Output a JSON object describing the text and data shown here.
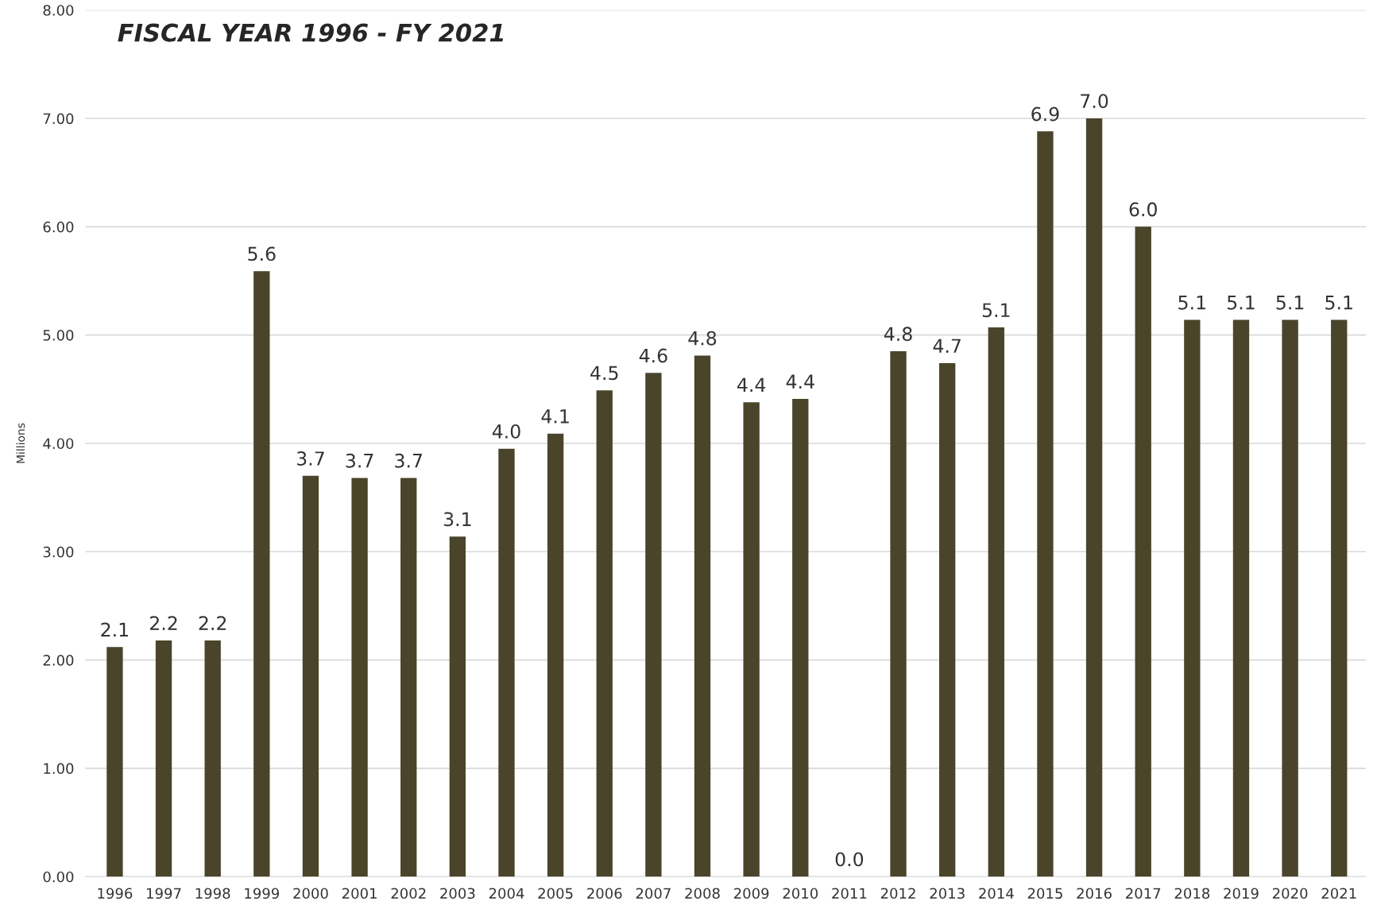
{
  "chart_data": {
    "type": "bar",
    "title": "FISCAL YEAR 1996 - FY 2021",
    "ylabel": "Millions",
    "categories": [
      "1996",
      "1997",
      "1998",
      "1999",
      "2000",
      "2001",
      "2002",
      "2003",
      "2004",
      "2005",
      "2006",
      "2007",
      "2008",
      "2009",
      "2010",
      "2011",
      "2012",
      "2013",
      "2014",
      "2015",
      "2016",
      "2017",
      "2018",
      "2019",
      "2020",
      "2021"
    ],
    "values": [
      2.12,
      2.18,
      2.18,
      5.59,
      3.7,
      3.68,
      3.68,
      3.14,
      3.95,
      4.09,
      4.49,
      4.65,
      4.81,
      4.38,
      4.41,
      0,
      4.85,
      4.74,
      5.07,
      6.88,
      7.0,
      6.0,
      5.14,
      5.14,
      5.14,
      5.14
    ],
    "value_labels": [
      "2.1",
      "2.2",
      "2.2",
      "5.6",
      "3.7",
      "3.7",
      "3.7",
      "3.1",
      "4.0",
      "4.1",
      "4.5",
      "4.6",
      "4.8",
      "4.4",
      "4.4",
      "0.0",
      "4.8",
      "4.7",
      "5.1",
      "6.9",
      "7.0",
      "6.0",
      "5.1",
      "5.1",
      "5.1",
      "5.1"
    ],
    "color": "#4a442a",
    "ylim": [
      0,
      8
    ],
    "yticks": [
      {
        "value": 0,
        "label": "0.00"
      },
      {
        "value": 1,
        "label": "1.00"
      },
      {
        "value": 2,
        "label": "2.00"
      },
      {
        "value": 3,
        "label": "3.00"
      },
      {
        "value": 4,
        "label": "4.00"
      },
      {
        "value": 5,
        "label": "5.00"
      },
      {
        "value": 6,
        "label": "6.00"
      },
      {
        "value": 7,
        "label": "7.00"
      },
      {
        "value": 8,
        "label": "8.00"
      }
    ],
    "grid": "y",
    "legend": false
  }
}
